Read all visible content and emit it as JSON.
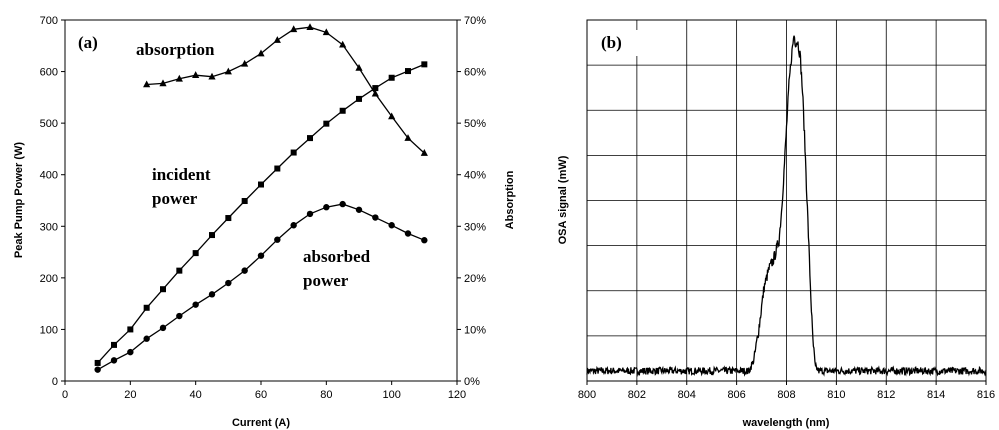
{
  "chart_data": [
    {
      "type": "line",
      "panel_label": "(a)",
      "xlabel": "Current (A)",
      "ylabel": "Peak Pump Power (W)",
      "y2label": "Absorption",
      "xlim": [
        0,
        120
      ],
      "ylim": [
        0,
        700
      ],
      "y2lim": [
        0,
        70
      ],
      "xticks": [
        "0",
        "20",
        "40",
        "60",
        "80",
        "100",
        "120"
      ],
      "yticks": [
        "0",
        "100",
        "200",
        "300",
        "400",
        "500",
        "600",
        "700"
      ],
      "y2ticks": [
        "0%",
        "10%",
        "20%",
        "30%",
        "40%",
        "50%",
        "60%",
        "70%"
      ],
      "grid": false,
      "series": [
        {
          "name": "absorption",
          "axis": "right",
          "marker": "triangle",
          "x": [
            25,
            30,
            35,
            40,
            45,
            50,
            55,
            60,
            65,
            70,
            75,
            80,
            85,
            90,
            95,
            100,
            105,
            110
          ],
          "values": [
            57.5,
            57.7,
            58.6,
            59.3,
            59.0,
            60.0,
            61.5,
            63.5,
            66.1,
            68.2,
            68.6,
            67.6,
            65.2,
            60.7,
            55.7,
            51.3,
            47.1,
            44.2
          ]
        },
        {
          "name": "incident power",
          "axis": "left",
          "marker": "square",
          "x": [
            10,
            15,
            20,
            25,
            30,
            35,
            40,
            45,
            50,
            55,
            60,
            65,
            70,
            75,
            80,
            85,
            90,
            95,
            100,
            105,
            110
          ],
          "values": [
            35,
            70,
            100,
            142,
            178,
            214,
            248,
            283,
            316,
            349,
            381,
            412,
            443,
            471,
            499,
            524,
            547,
            568,
            588,
            601,
            614
          ]
        },
        {
          "name": "absorbed power",
          "axis": "left",
          "marker": "circle",
          "x": [
            10,
            15,
            20,
            25,
            30,
            35,
            40,
            45,
            50,
            55,
            60,
            65,
            70,
            75,
            80,
            85,
            90,
            95,
            100,
            105,
            110
          ],
          "values": [
            22,
            40,
            56,
            82,
            103,
            126,
            148,
            168,
            190,
            214,
            243,
            274,
            302,
            324,
            337,
            343,
            332,
            317,
            302,
            286,
            273
          ]
        }
      ]
    },
    {
      "type": "line",
      "panel_label": "(b)",
      "xlabel": "wavelength (nm)",
      "ylabel": "OSA signal (mW)",
      "xlim": [
        800,
        816
      ],
      "ylim": [
        0,
        1.0
      ],
      "xticks": [
        "800",
        "802",
        "804",
        "806",
        "808",
        "810",
        "812",
        "814",
        "816"
      ],
      "grid": true,
      "grid_rows": 8,
      "baseline": 0.028,
      "noise": 0.01,
      "series": [
        {
          "x": [
            800,
            806.5,
            806.7,
            806.9,
            807.1,
            807.3,
            807.5,
            807.7,
            807.8,
            807.9,
            808.0,
            808.1,
            808.2,
            808.3,
            808.35,
            808.45,
            808.55,
            808.65,
            808.75,
            808.85,
            808.95,
            809.05,
            809.15,
            809.3,
            816
          ],
          "values": [
            0.028,
            0.028,
            0.06,
            0.15,
            0.26,
            0.31,
            0.34,
            0.39,
            0.47,
            0.58,
            0.7,
            0.82,
            0.9,
            0.96,
            0.94,
            0.94,
            0.9,
            0.79,
            0.63,
            0.46,
            0.28,
            0.12,
            0.04,
            0.028,
            0.028
          ]
        }
      ]
    }
  ],
  "annotations": [
    {
      "text": "absorption"
    },
    {
      "text": "incident"
    },
    {
      "text": "power"
    },
    {
      "text": "absorbed"
    },
    {
      "text": "power"
    }
  ]
}
